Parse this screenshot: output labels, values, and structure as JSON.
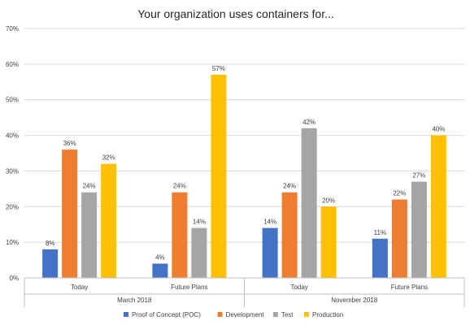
{
  "chart_data": {
    "type": "bar",
    "title": "Your organization uses containers for...",
    "xlabel": "",
    "ylabel": "",
    "ylim": [
      0,
      70
    ],
    "y_ticks": [
      "0%",
      "10%",
      "20%",
      "30%",
      "40%",
      "50%",
      "60%",
      "70%"
    ],
    "y_tick_values": [
      0,
      10,
      20,
      30,
      40,
      50,
      60,
      70
    ],
    "groups": [
      "March 2018",
      "November 2018"
    ],
    "categories": [
      "Today",
      "Future Plans",
      "Today",
      "Future Plans"
    ],
    "category_groups": [
      0,
      0,
      1,
      1
    ],
    "grid": true,
    "legend_position": "bottom",
    "series": [
      {
        "name": "Proof of Concept (POC)",
        "color": "#4472c4",
        "values": [
          8,
          4,
          14,
          11
        ],
        "labels": [
          "8%",
          "4%",
          "14%",
          "11%"
        ]
      },
      {
        "name": "Development",
        "color": "#ed7d31",
        "values": [
          36,
          24,
          24,
          22
        ],
        "labels": [
          "36%",
          "24%",
          "24%",
          "22%"
        ]
      },
      {
        "name": "Test",
        "color": "#a5a5a5",
        "values": [
          24,
          14,
          42,
          27
        ],
        "labels": [
          "24%",
          "14%",
          "42%",
          "27%"
        ]
      },
      {
        "name": "Production",
        "color": "#ffc000",
        "values": [
          32,
          57,
          20,
          40
        ],
        "labels": [
          "32%",
          "57%",
          "20%",
          "40%"
        ]
      }
    ]
  }
}
